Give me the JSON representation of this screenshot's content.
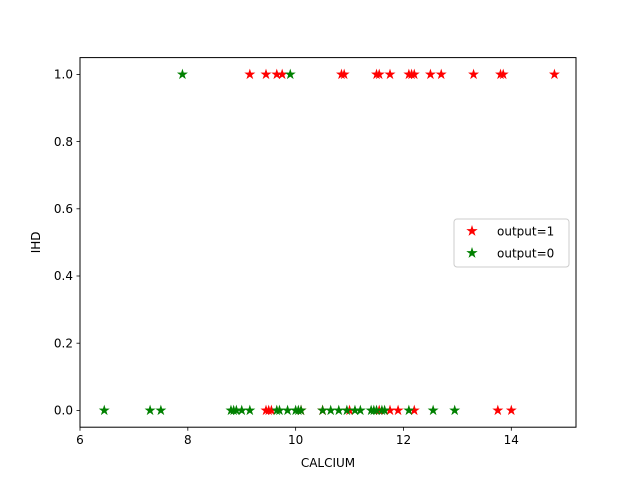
{
  "chart_data": {
    "type": "scatter",
    "title": "",
    "xlabel": "CALCIUM",
    "ylabel": "IHD",
    "xlim": [
      6.0,
      15.2
    ],
    "ylim": [
      -0.05,
      1.05
    ],
    "xticks": [
      6,
      8,
      10,
      12,
      14
    ],
    "yticks": [
      0.0,
      0.2,
      0.4,
      0.6,
      0.8,
      1.0
    ],
    "xtick_labels": [
      "6",
      "8",
      "10",
      "12",
      "14"
    ],
    "ytick_labels": [
      "0.0",
      "0.2",
      "0.4",
      "0.6",
      "0.8",
      "1.0"
    ],
    "grid": false,
    "legend_placement": "center-right",
    "marker": "star",
    "series": [
      {
        "name": "output=1",
        "color": "#ff0000",
        "points": [
          [
            9.15,
            1
          ],
          [
            9.45,
            1
          ],
          [
            9.65,
            1
          ],
          [
            9.75,
            1
          ],
          [
            10.85,
            1
          ],
          [
            10.9,
            1
          ],
          [
            11.5,
            1
          ],
          [
            11.55,
            1
          ],
          [
            11.75,
            1
          ],
          [
            12.1,
            1
          ],
          [
            12.15,
            1
          ],
          [
            12.2,
            1
          ],
          [
            12.5,
            1
          ],
          [
            12.7,
            1
          ],
          [
            13.3,
            1
          ],
          [
            13.8,
            1
          ],
          [
            13.85,
            1
          ],
          [
            14.8,
            1
          ],
          [
            9.45,
            0
          ],
          [
            9.5,
            0
          ],
          [
            9.55,
            0
          ],
          [
            10.1,
            0
          ],
          [
            10.5,
            0
          ],
          [
            11.0,
            0
          ],
          [
            11.55,
            0
          ],
          [
            11.75,
            0
          ],
          [
            11.9,
            0
          ],
          [
            12.2,
            0
          ],
          [
            13.75,
            0
          ],
          [
            14.0,
            0
          ]
        ]
      },
      {
        "name": "output=0",
        "color": "#008000",
        "points": [
          [
            7.9,
            1
          ],
          [
            9.9,
            1
          ],
          [
            6.45,
            0
          ],
          [
            7.3,
            0
          ],
          [
            7.5,
            0
          ],
          [
            8.8,
            0
          ],
          [
            8.85,
            0
          ],
          [
            8.9,
            0
          ],
          [
            9.0,
            0
          ],
          [
            9.15,
            0
          ],
          [
            9.65,
            0
          ],
          [
            9.7,
            0
          ],
          [
            9.85,
            0
          ],
          [
            10.0,
            0
          ],
          [
            10.05,
            0
          ],
          [
            10.1,
            0
          ],
          [
            10.5,
            0
          ],
          [
            10.65,
            0
          ],
          [
            10.8,
            0
          ],
          [
            10.95,
            0
          ],
          [
            11.1,
            0
          ],
          [
            11.2,
            0
          ],
          [
            11.4,
            0
          ],
          [
            11.45,
            0
          ],
          [
            11.5,
            0
          ],
          [
            11.6,
            0
          ],
          [
            11.65,
            0
          ],
          [
            12.1,
            0
          ],
          [
            12.55,
            0
          ],
          [
            12.95,
            0
          ]
        ]
      }
    ]
  }
}
